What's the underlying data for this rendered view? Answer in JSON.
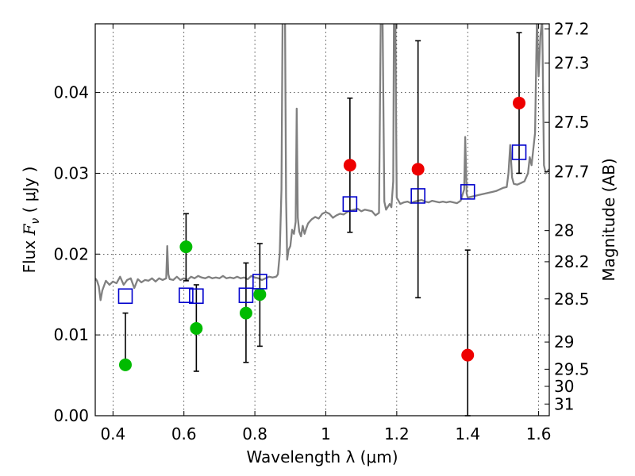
{
  "chart_data": {
    "type": "scatter",
    "xlabel": "Wavelength  λ (μm)",
    "ylabel_prefix": "Flux  ",
    "ylabel_var": "F",
    "ylabel_sub": "ν",
    "ylabel_unit": "  ( μJy )",
    "y2label": "Magnitude (AB)",
    "xlim": [
      0.35,
      1.63
    ],
    "ylim": [
      0.0,
      0.0485
    ],
    "grid": true,
    "x_ticks": [
      {
        "value": 0.4,
        "label": "0.4"
      },
      {
        "value": 0.6,
        "label": "0.6"
      },
      {
        "value": 0.8,
        "label": "0.8"
      },
      {
        "value": 1.0,
        "label": "1"
      },
      {
        "value": 1.2,
        "label": "1.2"
      },
      {
        "value": 1.4,
        "label": "1.4"
      },
      {
        "value": 1.6,
        "label": "1.6"
      }
    ],
    "y_ticks": [
      {
        "value": 0.0,
        "label": "0.00"
      },
      {
        "value": 0.01,
        "label": "0.01"
      },
      {
        "value": 0.02,
        "label": "0.02"
      },
      {
        "value": 0.03,
        "label": "0.03"
      },
      {
        "value": 0.04,
        "label": "0.04"
      }
    ],
    "y2_ticks": [
      {
        "mag": 27.2,
        "label": "27.2"
      },
      {
        "mag": 27.3,
        "label": "27.3"
      },
      {
        "mag": 27.5,
        "label": "27.5"
      },
      {
        "mag": 27.7,
        "label": "27.7"
      },
      {
        "mag": 28.0,
        "label": "28"
      },
      {
        "mag": 28.2,
        "label": "28.2"
      },
      {
        "mag": 28.5,
        "label": "28.5"
      },
      {
        "mag": 29.0,
        "label": "29"
      },
      {
        "mag": 29.5,
        "label": "29.5"
      },
      {
        "mag": 30.0,
        "label": "30"
      },
      {
        "mag": 31.0,
        "label": "31"
      }
    ],
    "colors": {
      "model": "#808080",
      "green": "#00bb00",
      "red": "#ee0000",
      "square": "#0000cc",
      "errorbar": "#000000"
    },
    "series": [
      {
        "marker": "circle",
        "color": "#00bb00",
        "points": [
          {
            "x": 0.435,
            "y": 0.0063,
            "yerr": [
              0.0063,
              0.0127
            ]
          },
          {
            "x": 0.606,
            "y": 0.0209,
            "yerr": [
              0.0167,
              0.025
            ]
          },
          {
            "x": 0.635,
            "y": 0.0108,
            "yerr": [
              0.0055,
              0.0162
            ]
          },
          {
            "x": 0.775,
            "y": 0.0127,
            "yerr": [
              0.0066,
              0.0189
            ]
          },
          {
            "x": 0.814,
            "y": 0.015,
            "yerr": [
              0.0086,
              0.0213
            ]
          }
        ]
      },
      {
        "marker": "circle",
        "color": "#ee0000",
        "points": [
          {
            "x": 1.068,
            "y": 0.031,
            "yerr": [
              0.0227,
              0.0393
            ]
          },
          {
            "x": 1.26,
            "y": 0.0305,
            "yerr": [
              0.0146,
              0.0464
            ]
          },
          {
            "x": 1.4,
            "y": 0.0075,
            "yerr": [
              0.0,
              0.0205
            ]
          },
          {
            "x": 1.545,
            "y": 0.0387,
            "yerr": [
              0.03,
              0.0474
            ]
          }
        ]
      },
      {
        "marker": "square",
        "color": "#0000cc",
        "points": [
          {
            "x": 0.435,
            "y": 0.0148
          },
          {
            "x": 0.606,
            "y": 0.0149
          },
          {
            "x": 0.635,
            "y": 0.0148
          },
          {
            "x": 0.775,
            "y": 0.0149
          },
          {
            "x": 0.814,
            "y": 0.0166
          },
          {
            "x": 1.068,
            "y": 0.0262
          },
          {
            "x": 1.26,
            "y": 0.0272
          },
          {
            "x": 1.4,
            "y": 0.0277
          },
          {
            "x": 1.545,
            "y": 0.0326
          }
        ]
      }
    ],
    "model_spectrum": [
      [
        0.35,
        0.017
      ],
      [
        0.355,
        0.0167
      ],
      [
        0.36,
        0.016
      ],
      [
        0.365,
        0.0143
      ],
      [
        0.37,
        0.0155
      ],
      [
        0.38,
        0.0167
      ],
      [
        0.39,
        0.0162
      ],
      [
        0.4,
        0.0166
      ],
      [
        0.41,
        0.0164
      ],
      [
        0.42,
        0.0172
      ],
      [
        0.43,
        0.0162
      ],
      [
        0.44,
        0.0168
      ],
      [
        0.45,
        0.017
      ],
      [
        0.46,
        0.0158
      ],
      [
        0.47,
        0.0169
      ],
      [
        0.48,
        0.0165
      ],
      [
        0.49,
        0.0168
      ],
      [
        0.5,
        0.0167
      ],
      [
        0.51,
        0.017
      ],
      [
        0.52,
        0.0166
      ],
      [
        0.53,
        0.017
      ],
      [
        0.54,
        0.0168
      ],
      [
        0.55,
        0.017
      ],
      [
        0.553,
        0.021
      ],
      [
        0.556,
        0.0175
      ],
      [
        0.56,
        0.0169
      ],
      [
        0.57,
        0.0168
      ],
      [
        0.58,
        0.0172
      ],
      [
        0.59,
        0.0168
      ],
      [
        0.6,
        0.017
      ],
      [
        0.61,
        0.0168
      ],
      [
        0.62,
        0.0172
      ],
      [
        0.63,
        0.017
      ],
      [
        0.64,
        0.0173
      ],
      [
        0.65,
        0.0171
      ],
      [
        0.66,
        0.017
      ],
      [
        0.67,
        0.0172
      ],
      [
        0.68,
        0.017
      ],
      [
        0.69,
        0.0171
      ],
      [
        0.7,
        0.017
      ],
      [
        0.71,
        0.0173
      ],
      [
        0.72,
        0.017
      ],
      [
        0.73,
        0.0171
      ],
      [
        0.74,
        0.017
      ],
      [
        0.75,
        0.0172
      ],
      [
        0.76,
        0.017
      ],
      [
        0.77,
        0.0171
      ],
      [
        0.78,
        0.0169
      ],
      [
        0.79,
        0.0173
      ],
      [
        0.8,
        0.0171
      ],
      [
        0.81,
        0.017
      ],
      [
        0.82,
        0.0168
      ],
      [
        0.83,
        0.017
      ],
      [
        0.84,
        0.0172
      ],
      [
        0.85,
        0.0171
      ],
      [
        0.86,
        0.0172
      ],
      [
        0.865,
        0.0175
      ],
      [
        0.87,
        0.02
      ],
      [
        0.875,
        0.028
      ],
      [
        0.878,
        0.049
      ],
      [
        0.885,
        0.049
      ],
      [
        0.888,
        0.027
      ],
      [
        0.891,
        0.0193
      ],
      [
        0.895,
        0.0205
      ],
      [
        0.9,
        0.021
      ],
      [
        0.905,
        0.023
      ],
      [
        0.91,
        0.0225
      ],
      [
        0.915,
        0.024
      ],
      [
        0.918,
        0.038
      ],
      [
        0.921,
        0.0245
      ],
      [
        0.925,
        0.0228
      ],
      [
        0.93,
        0.0222
      ],
      [
        0.935,
        0.0235
      ],
      [
        0.94,
        0.0225
      ],
      [
        0.945,
        0.0232
      ],
      [
        0.95,
        0.0238
      ],
      [
        0.96,
        0.0243
      ],
      [
        0.97,
        0.0246
      ],
      [
        0.98,
        0.0244
      ],
      [
        0.99,
        0.025
      ],
      [
        1.0,
        0.0252
      ],
      [
        1.01,
        0.025
      ],
      [
        1.02,
        0.0245
      ],
      [
        1.03,
        0.0248
      ],
      [
        1.04,
        0.025
      ],
      [
        1.05,
        0.0249
      ],
      [
        1.06,
        0.0252
      ],
      [
        1.07,
        0.0254
      ],
      [
        1.08,
        0.0255
      ],
      [
        1.09,
        0.0256
      ],
      [
        1.1,
        0.0253
      ],
      [
        1.11,
        0.0255
      ],
      [
        1.12,
        0.0254
      ],
      [
        1.13,
        0.0253
      ],
      [
        1.14,
        0.0248
      ],
      [
        1.15,
        0.0251
      ],
      [
        1.155,
        0.049
      ],
      [
        1.16,
        0.049
      ],
      [
        1.165,
        0.0265
      ],
      [
        1.17,
        0.0255
      ],
      [
        1.18,
        0.0262
      ],
      [
        1.185,
        0.0258
      ],
      [
        1.19,
        0.029
      ],
      [
        1.192,
        0.049
      ],
      [
        1.196,
        0.049
      ],
      [
        1.2,
        0.027
      ],
      [
        1.21,
        0.0262
      ],
      [
        1.22,
        0.0264
      ],
      [
        1.23,
        0.0265
      ],
      [
        1.24,
        0.0263
      ],
      [
        1.25,
        0.0265
      ],
      [
        1.26,
        0.0266
      ],
      [
        1.27,
        0.0267
      ],
      [
        1.28,
        0.0265
      ],
      [
        1.29,
        0.0264
      ],
      [
        1.3,
        0.0266
      ],
      [
        1.31,
        0.0265
      ],
      [
        1.32,
        0.0264
      ],
      [
        1.33,
        0.0265
      ],
      [
        1.34,
        0.0264
      ],
      [
        1.35,
        0.0265
      ],
      [
        1.36,
        0.0264
      ],
      [
        1.37,
        0.0263
      ],
      [
        1.38,
        0.0266
      ],
      [
        1.39,
        0.028
      ],
      [
        1.393,
        0.0345
      ],
      [
        1.397,
        0.0275
      ],
      [
        1.4,
        0.027
      ],
      [
        1.41,
        0.0271
      ],
      [
        1.42,
        0.0272
      ],
      [
        1.43,
        0.0273
      ],
      [
        1.44,
        0.0274
      ],
      [
        1.45,
        0.0275
      ],
      [
        1.46,
        0.0276
      ],
      [
        1.47,
        0.0277
      ],
      [
        1.48,
        0.0278
      ],
      [
        1.49,
        0.028
      ],
      [
        1.5,
        0.0282
      ],
      [
        1.51,
        0.0283
      ],
      [
        1.515,
        0.03
      ],
      [
        1.52,
        0.0335
      ],
      [
        1.525,
        0.0295
      ],
      [
        1.53,
        0.0287
      ],
      [
        1.54,
        0.0286
      ],
      [
        1.55,
        0.0288
      ],
      [
        1.56,
        0.029
      ],
      [
        1.57,
        0.03
      ],
      [
        1.575,
        0.032
      ],
      [
        1.58,
        0.031
      ],
      [
        1.59,
        0.035
      ],
      [
        1.595,
        0.049
      ],
      [
        1.6,
        0.042
      ],
      [
        1.605,
        0.047
      ],
      [
        1.61,
        0.049
      ],
      [
        1.615,
        0.031
      ],
      [
        1.62,
        0.03
      ],
      [
        1.63,
        0.0305
      ]
    ]
  }
}
